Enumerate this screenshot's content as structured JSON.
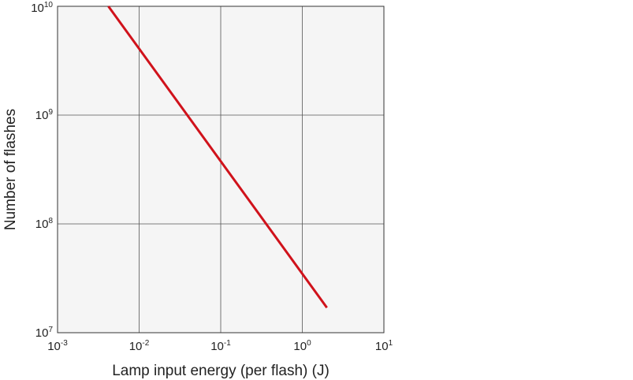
{
  "chart_data": {
    "type": "line",
    "xlabel": "Lamp input energy (per flash) (J)",
    "ylabel": "Number of flashes",
    "x_scale": "log",
    "y_scale": "log",
    "xlim": [
      0.001,
      10
    ],
    "ylim": [
      10000000,
      10000000000
    ],
    "grid": true,
    "x_ticks": [
      {
        "value": 0.001,
        "base": "10",
        "exp": "-3"
      },
      {
        "value": 0.01,
        "base": "10",
        "exp": "-2"
      },
      {
        "value": 0.1,
        "base": "10",
        "exp": "-1"
      },
      {
        "value": 1,
        "base": "10",
        "exp": "0"
      },
      {
        "value": 10,
        "base": "10",
        "exp": "1"
      }
    ],
    "y_ticks": [
      {
        "value": 10000000,
        "base": "10",
        "exp": "7"
      },
      {
        "value": 100000000,
        "base": "10",
        "exp": "8"
      },
      {
        "value": 1000000000,
        "base": "10",
        "exp": "9"
      },
      {
        "value": 10000000000,
        "base": "10",
        "exp": "10"
      }
    ],
    "series": [
      {
        "color": "#d0121b",
        "x": [
          0.0042,
          2
        ],
        "y": [
          10000000000,
          17000000
        ]
      }
    ]
  },
  "colors": {
    "plot_background": "#f5f5f5",
    "grid": "#555555",
    "frame": "#333333",
    "line": "#d0121b"
  }
}
